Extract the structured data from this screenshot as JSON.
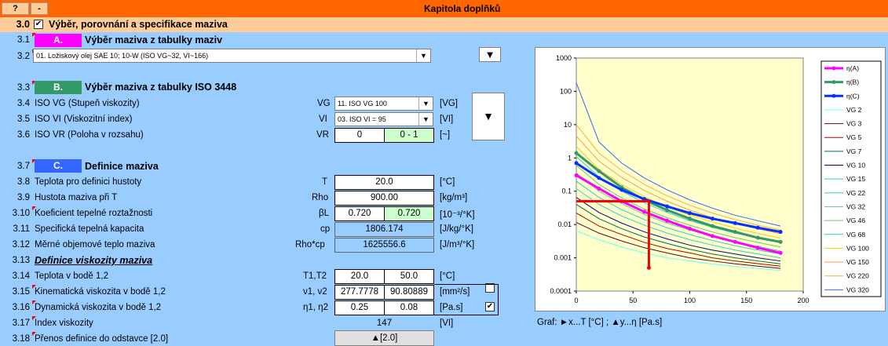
{
  "topbar": {
    "help_btn": "?",
    "minus_btn": "-",
    "title": "Kapitola doplňků"
  },
  "sec30": {
    "num": "3.0",
    "check": "✔",
    "title": "Výběr, porovnání a specifikace maziva"
  },
  "rows": [
    {
      "num": "3.1",
      "label": "Výběr maziva z tabulky maziv"
    },
    {
      "num": "3.2"
    },
    {
      "num": "3.3",
      "label": "Výběr maziva z tabulky ISO 3448"
    },
    {
      "num": "3.4",
      "label": "ISO VG (Stupeň viskozity)",
      "sym": "VG",
      "unit": "[VG]"
    },
    {
      "num": "3.5",
      "label": "ISO VI (Viskozitní index)",
      "sym": "VI",
      "unit": "[VI]"
    },
    {
      "num": "3.6",
      "label": "ISO VR (Poloha v rozsahu)",
      "sym": "VR",
      "unit": "[~]"
    },
    {
      "num": "3.7",
      "label": "Definice maziva"
    },
    {
      "num": "3.8",
      "label": "Teplota pro definici hustoty",
      "sym": "T",
      "unit": "[°C]"
    },
    {
      "num": "3.9",
      "label": "Hustota maziva při T",
      "sym": "Rho",
      "unit": "[kg/m³]"
    },
    {
      "num": "3.10",
      "label": "Koeficient tepelné roztažnosti",
      "sym": "βL",
      "unit": "[10⁻³/°K]"
    },
    {
      "num": "3.11",
      "label": "Specifická tepelná kapacita",
      "sym": "cp",
      "unit": "[J/kg/°K]"
    },
    {
      "num": "3.12",
      "label": "Měrné objemové teplo maziva",
      "sym": "Rho*cp",
      "unit": "[J/m³/°K]"
    },
    {
      "num": "3.13",
      "label": "Definice viskozity maziva"
    },
    {
      "num": "3.14",
      "label": "Teplota v bodě 1,2",
      "sym": "T1,T2",
      "unit": "[°C]"
    },
    {
      "num": "3.15",
      "label": "Kinematická viskozita v bodě 1,2",
      "sym": "ν1, ν2",
      "unit": "[mm²/s]"
    },
    {
      "num": "3.16",
      "label": "Dynamická viskozita v bodě 1,2",
      "sym": "η1, η2",
      "unit": "[Pa.s]"
    },
    {
      "num": "3.17",
      "label": "Index viskozity",
      "unit": "[VI]"
    },
    {
      "num": "3.18",
      "label": "Přenos definice do odstavce [2.0]"
    }
  ],
  "badges": {
    "a": "A.",
    "b": "B.",
    "c": "C."
  },
  "combos": {
    "lubricant": "01. Ložiskový olej SAE 10; 10-W (ISO VG~32, VI~166)",
    "vg": "11. ISO VG 100",
    "vi": "03. ISO VI = 95"
  },
  "values": {
    "vr1": "0",
    "vr2": "0 - 1",
    "t": "20.0",
    "rho": "900.00",
    "beta1": "0.720",
    "beta2": "0.720",
    "cp": "1806.174",
    "rhocp": "1625556.6",
    "t1": "20.0",
    "t2": "50.0",
    "nu1": "277.7778",
    "nu2": "90.80889",
    "eta1": "0.25",
    "eta2": "0.08",
    "vi": "147",
    "transfer_btn": "▲[2.0]",
    "check16": "✔"
  },
  "arrow_glyph": "▼",
  "colors": {
    "orange": "#ff6600",
    "peach": "#ffcc99",
    "magenta": "#ff00ff",
    "green": "#339966",
    "blue": "#3366ff",
    "bg": "#99ccff",
    "plot": "#ffffcc"
  },
  "chart_caption": "Graf: ►x...T [°C] ;     ▲y...η [Pa.s]",
  "chart_data": {
    "type": "line",
    "y_scale": "log",
    "ylim": [
      0.0001,
      1000
    ],
    "xlim": [
      0,
      200
    ],
    "x_ticks": [
      0,
      50,
      100,
      150,
      200
    ],
    "y_ticks": [
      "1000",
      "100",
      "10",
      "1",
      "0.1",
      "0.01",
      "0.001",
      "0.0001"
    ],
    "x": [
      0,
      20,
      40,
      60,
      80,
      100,
      120,
      140,
      160,
      180
    ],
    "series": [
      {
        "name": "η(A)",
        "color": "#ff00ff",
        "width": 3,
        "values": [
          0.3,
          0.12,
          0.05,
          0.024,
          0.013,
          0.0075,
          0.0045,
          0.003,
          0.002,
          0.0014
        ]
      },
      {
        "name": "η(B)",
        "color": "#339966",
        "width": 3,
        "values": [
          1.4,
          0.4,
          0.13,
          0.055,
          0.027,
          0.015,
          0.009,
          0.006,
          0.004,
          0.003
        ]
      },
      {
        "name": "η(C)",
        "color": "#0033ff",
        "width": 3,
        "values": [
          0.7,
          0.25,
          0.11,
          0.058,
          0.035,
          0.022,
          0.015,
          0.011,
          0.008,
          0.006
        ]
      },
      {
        "name": "VG 2",
        "color": "#66ffff",
        "width": 1,
        "values": [
          0.0065,
          0.0035,
          0.0021,
          0.0014,
          0.001,
          0.0008,
          0.00065,
          0.00055,
          0.00048,
          0.00042
        ]
      },
      {
        "name": "VG 3",
        "color": "#660033",
        "width": 1,
        "values": [
          0.0115,
          0.0055,
          0.0032,
          0.002,
          0.0014,
          0.001,
          0.0008,
          0.00066,
          0.00056,
          0.00048
        ]
      },
      {
        "name": "VG 5",
        "color": "#aa0000",
        "width": 1,
        "values": [
          0.022,
          0.009,
          0.005,
          0.0029,
          0.0019,
          0.0014,
          0.001,
          0.0008,
          0.00067,
          0.00056
        ]
      },
      {
        "name": "VG 7",
        "color": "#006666",
        "width": 1,
        "values": [
          0.04,
          0.015,
          0.0075,
          0.0042,
          0.0027,
          0.0018,
          0.0013,
          0.001,
          0.0008,
          0.00066
        ]
      },
      {
        "name": "VG 10",
        "color": "#000099",
        "width": 1,
        "values": [
          0.065,
          0.023,
          0.011,
          0.006,
          0.0037,
          0.0024,
          0.0017,
          0.0013,
          0.001,
          0.0008
        ]
      },
      {
        "name": "VG 15",
        "color": "#33cccc",
        "width": 1,
        "values": [
          0.12,
          0.04,
          0.018,
          0.0095,
          0.0055,
          0.0035,
          0.0024,
          0.0017,
          0.0013,
          0.001
        ]
      },
      {
        "name": "VG 22",
        "color": "#33cccc",
        "width": 1,
        "values": [
          0.2,
          0.065,
          0.028,
          0.014,
          0.008,
          0.005,
          0.0033,
          0.0023,
          0.0017,
          0.0013
        ]
      },
      {
        "name": "VG 32",
        "color": "#66cc99",
        "width": 1,
        "values": [
          0.35,
          0.1,
          0.042,
          0.02,
          0.011,
          0.0068,
          0.0044,
          0.003,
          0.0022,
          0.0016
        ]
      },
      {
        "name": "VG 46",
        "color": "#66cc66",
        "width": 1,
        "values": [
          0.6,
          0.16,
          0.063,
          0.029,
          0.016,
          0.0095,
          0.006,
          0.004,
          0.0029,
          0.0021
        ]
      },
      {
        "name": "VG 68",
        "color": "#33cccc",
        "width": 1,
        "values": [
          1.1,
          0.27,
          0.1,
          0.045,
          0.023,
          0.013,
          0.0082,
          0.0055,
          0.0039,
          0.0028
        ]
      },
      {
        "name": "VG 100",
        "color": "#ffcc00",
        "width": 1,
        "values": [
          2.2,
          0.45,
          0.16,
          0.068,
          0.034,
          0.019,
          0.012,
          0.0078,
          0.0054,
          0.0039
        ]
      },
      {
        "name": "VG 150",
        "color": "#ff9933",
        "width": 1,
        "values": [
          4.5,
          0.8,
          0.26,
          0.105,
          0.05,
          0.027,
          0.016,
          0.011,
          0.0074,
          0.0053
        ]
      },
      {
        "name": "VG 220",
        "color": "#ffaa44",
        "width": 1,
        "values": [
          10,
          1.4,
          0.42,
          0.16,
          0.073,
          0.038,
          0.022,
          0.014,
          0.0095,
          0.0068
        ]
      },
      {
        "name": "VG 320",
        "color": "#3366ff",
        "width": 1,
        "values": [
          180,
          3,
          0.7,
          0.25,
          0.11,
          0.055,
          0.031,
          0.019,
          0.013,
          0.009
        ]
      }
    ],
    "marker_line": {
      "color": "#ff0000",
      "x": 64,
      "y_level": 0.05,
      "y_bottom": 0.0005
    }
  }
}
